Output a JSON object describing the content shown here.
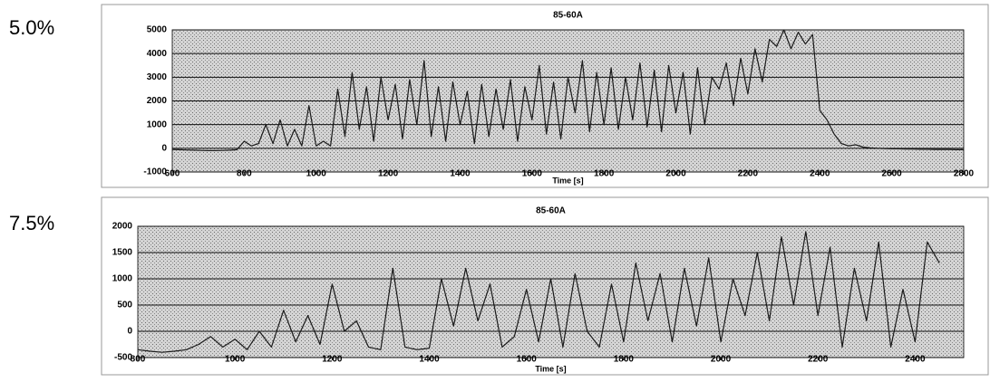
{
  "chart_data": [
    {
      "type": "line",
      "label": "5.0%",
      "title": "85-60A",
      "x_label": "Time [s]",
      "xlim": [
        600,
        2800
      ],
      "xticks": [
        600,
        800,
        1000,
        1200,
        1400,
        1600,
        1800,
        2000,
        2200,
        2400,
        2600,
        2800
      ],
      "ylim": [
        -1000,
        5000
      ],
      "yticks": [
        -1000,
        0,
        1000,
        2000,
        3000,
        4000,
        5000
      ],
      "grid": true,
      "series": [
        {
          "color": "#1a1a1a",
          "x": [
            600,
            620,
            640,
            660,
            680,
            700,
            720,
            740,
            760,
            780,
            800,
            820,
            840,
            860,
            880,
            900,
            920,
            940,
            960,
            980,
            1000,
            1020,
            1040,
            1060,
            1080,
            1100,
            1120,
            1140,
            1160,
            1180,
            1200,
            1220,
            1240,
            1260,
            1280,
            1300,
            1320,
            1340,
            1360,
            1380,
            1400,
            1420,
            1440,
            1460,
            1480,
            1500,
            1520,
            1540,
            1560,
            1580,
            1600,
            1620,
            1640,
            1660,
            1680,
            1700,
            1720,
            1740,
            1760,
            1780,
            1800,
            1820,
            1840,
            1860,
            1880,
            1900,
            1920,
            1940,
            1960,
            1980,
            2000,
            2020,
            2040,
            2060,
            2080,
            2100,
            2120,
            2140,
            2160,
            2180,
            2200,
            2220,
            2240,
            2260,
            2280,
            2300,
            2320,
            2340,
            2360,
            2380,
            2400,
            2420,
            2440,
            2460,
            2480,
            2500,
            2520,
            2540,
            2560,
            2580,
            2600,
            2620,
            2640,
            2660,
            2680,
            2700,
            2720,
            2740,
            2760,
            2780,
            2800
          ],
          "values": [
            -50,
            -60,
            -70,
            -80,
            -90,
            -100,
            -100,
            -90,
            -80,
            -60,
            300,
            100,
            200,
            1000,
            200,
            1200,
            100,
            800,
            100,
            1800,
            100,
            300,
            100,
            2500,
            500,
            3200,
            800,
            2600,
            300,
            3000,
            1200,
            2700,
            400,
            2900,
            1000,
            3700,
            500,
            2600,
            300,
            2800,
            1000,
            2400,
            200,
            2700,
            500,
            2500,
            800,
            2900,
            300,
            2600,
            1200,
            3500,
            600,
            2800,
            400,
            3000,
            1500,
            3700,
            700,
            3200,
            1000,
            3400,
            800,
            3000,
            1200,
            3600,
            900,
            3300,
            700,
            3500,
            1500,
            3200,
            600,
            3400,
            1000,
            3000,
            2500,
            3600,
            1800,
            3800,
            2300,
            4200,
            2800,
            4600,
            4300,
            5000,
            4200,
            4900,
            4400,
            4800,
            1600,
            1200,
            600,
            200,
            100,
            150,
            50,
            20,
            0,
            -10,
            -20,
            -20,
            -30,
            -30,
            -40,
            -40,
            -50,
            -50,
            -50,
            -60,
            -60
          ]
        }
      ]
    },
    {
      "type": "line",
      "label": "7.5%",
      "title": "85-60A",
      "x_label": "Time [s]",
      "xlim": [
        800,
        2500
      ],
      "xticks": [
        800,
        1000,
        1200,
        1400,
        1600,
        1800,
        2000,
        2200,
        2400
      ],
      "ylim": [
        -500,
        2000
      ],
      "yticks": [
        -500,
        0,
        500,
        1000,
        1500,
        2000
      ],
      "grid": true,
      "series": [
        {
          "color": "#1a1a1a",
          "x": [
            800,
            825,
            850,
            875,
            900,
            925,
            950,
            975,
            1000,
            1025,
            1050,
            1075,
            1100,
            1125,
            1150,
            1175,
            1200,
            1225,
            1250,
            1275,
            1300,
            1325,
            1350,
            1375,
            1400,
            1425,
            1450,
            1475,
            1500,
            1525,
            1550,
            1575,
            1600,
            1625,
            1650,
            1675,
            1700,
            1725,
            1750,
            1775,
            1800,
            1825,
            1850,
            1875,
            1900,
            1925,
            1950,
            1975,
            2000,
            2025,
            2050,
            2075,
            2100,
            2125,
            2150,
            2175,
            2200,
            2225,
            2250,
            2275,
            2300,
            2325,
            2350,
            2375,
            2400,
            2425,
            2450
          ],
          "values": [
            -350,
            -380,
            -400,
            -380,
            -350,
            -250,
            -100,
            -300,
            -150,
            -350,
            0,
            -300,
            400,
            -200,
            300,
            -250,
            900,
            0,
            200,
            -300,
            -350,
            1200,
            -300,
            -350,
            -320,
            1000,
            100,
            1200,
            200,
            900,
            -300,
            -100,
            800,
            -200,
            1000,
            -300,
            1100,
            0,
            -300,
            900,
            -200,
            1300,
            200,
            1100,
            -200,
            1200,
            100,
            1400,
            -200,
            1000,
            300,
            1500,
            200,
            1800,
            500,
            1900,
            300,
            1600,
            -300,
            1200,
            200,
            1700,
            -300,
            800,
            -200,
            1700,
            1300
          ]
        }
      ]
    }
  ]
}
